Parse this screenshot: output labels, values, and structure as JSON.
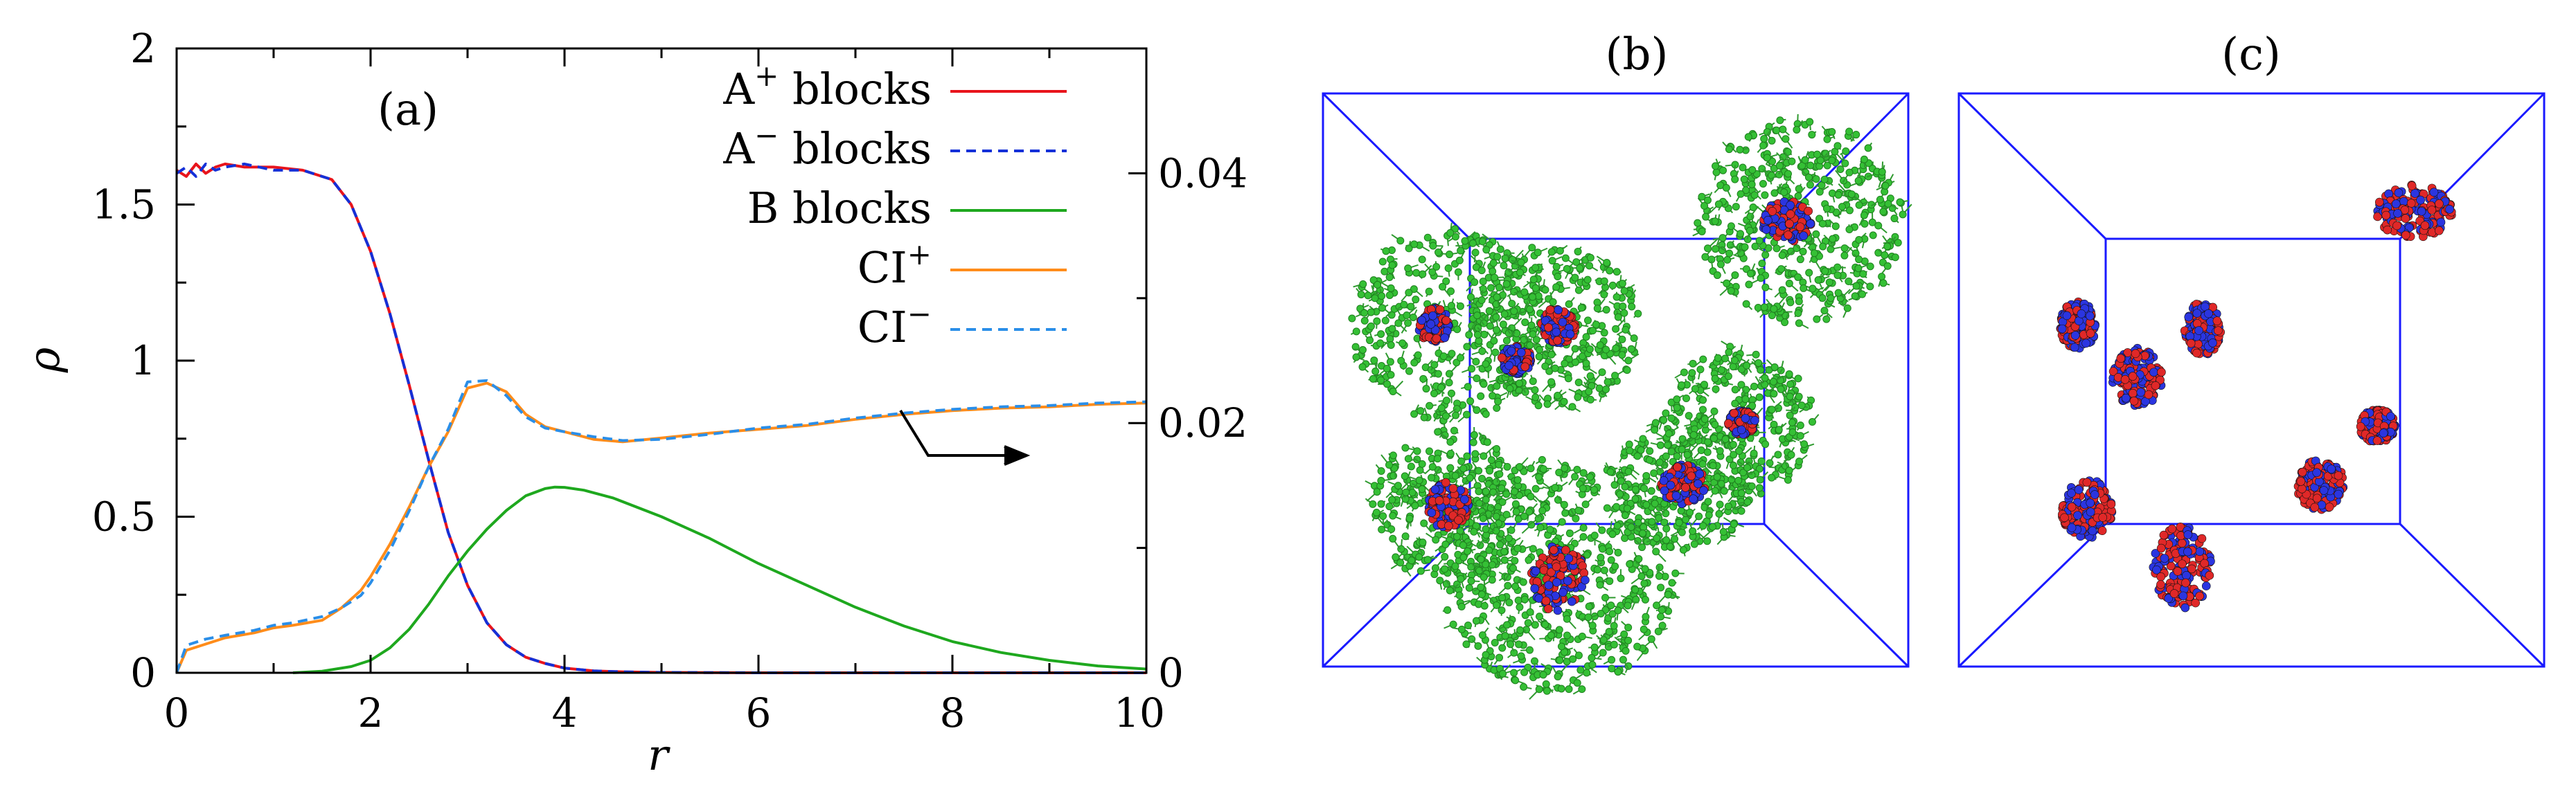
{
  "chart_data": [
    {
      "type": "line",
      "panel_label": "(a)",
      "xlabel": "r",
      "ylabel": "ρ",
      "xlim": [
        0,
        10
      ],
      "ylim": [
        0,
        2
      ],
      "y2lim": [
        0,
        0.05
      ],
      "x_ticks": [
        "0",
        "2",
        "4",
        "6",
        "8",
        "10"
      ],
      "y_ticks": [
        "0",
        "0.5",
        "1",
        "1.5",
        "2"
      ],
      "y2_ticks": [
        "0",
        "0.02",
        "0.04"
      ],
      "legend": [
        {
          "base": "A",
          "sup": "+",
          "rest": " blocks",
          "color": "#e8141c",
          "dash": false
        },
        {
          "base": "A",
          "sup": "−",
          "rest": " blocks",
          "color": "#1430d8",
          "dash": true
        },
        {
          "base": "B blocks",
          "sup": "",
          "rest": "",
          "color": "#1ea81e",
          "dash": false
        },
        {
          "base": "CI",
          "sup": "+",
          "rest": "",
          "color": "#ff8c1a",
          "dash": false
        },
        {
          "base": "CI",
          "sup": "−",
          "rest": "",
          "color": "#2a8ee8",
          "dash": true
        }
      ],
      "annotation": "arrow indicating CI curves use the right axis",
      "series": [
        {
          "name": "A+ blocks",
          "axis": "left",
          "color": "#e8141c",
          "dash": false,
          "x": [
            0,
            0.1,
            0.2,
            0.3,
            0.4,
            0.5,
            0.7,
            1,
            1.3,
            1.6,
            1.8,
            2,
            2.2,
            2.4,
            2.6,
            2.8,
            3,
            3.2,
            3.4,
            3.6,
            3.8,
            4,
            4.3,
            4.6,
            5,
            6,
            7,
            8,
            9,
            10
          ],
          "y": [
            1.61,
            1.59,
            1.63,
            1.6,
            1.62,
            1.63,
            1.62,
            1.62,
            1.61,
            1.58,
            1.5,
            1.35,
            1.15,
            0.92,
            0.68,
            0.45,
            0.28,
            0.16,
            0.09,
            0.05,
            0.03,
            0.015,
            0.006,
            0.003,
            0.001,
            0,
            0,
            0,
            0,
            0
          ]
        },
        {
          "name": "A- blocks",
          "axis": "left",
          "color": "#1430d8",
          "dash": true,
          "x": [
            0,
            0.1,
            0.2,
            0.3,
            0.4,
            0.5,
            0.7,
            1,
            1.3,
            1.6,
            1.8,
            2,
            2.2,
            2.4,
            2.6,
            2.8,
            3,
            3.2,
            3.4,
            3.6,
            3.8,
            4,
            4.3,
            4.6,
            5,
            6,
            7,
            8,
            9,
            10
          ],
          "y": [
            1.6,
            1.62,
            1.59,
            1.63,
            1.61,
            1.62,
            1.63,
            1.61,
            1.61,
            1.58,
            1.5,
            1.35,
            1.15,
            0.92,
            0.68,
            0.45,
            0.28,
            0.16,
            0.09,
            0.05,
            0.03,
            0.015,
            0.006,
            0.003,
            0.001,
            0,
            0,
            0,
            0,
            0
          ]
        },
        {
          "name": "B blocks",
          "axis": "left",
          "color": "#1ea81e",
          "dash": false,
          "x": [
            1.2,
            1.5,
            1.8,
            2,
            2.2,
            2.4,
            2.6,
            2.8,
            3,
            3.2,
            3.4,
            3.6,
            3.8,
            3.9,
            4,
            4.2,
            4.5,
            5,
            5.5,
            6,
            6.5,
            7,
            7.5,
            8,
            8.5,
            9,
            9.5,
            10
          ],
          "y": [
            0,
            0.005,
            0.02,
            0.04,
            0.08,
            0.14,
            0.22,
            0.31,
            0.39,
            0.46,
            0.52,
            0.567,
            0.59,
            0.595,
            0.594,
            0.585,
            0.56,
            0.5,
            0.43,
            0.35,
            0.28,
            0.21,
            0.15,
            0.1,
            0.065,
            0.04,
            0.022,
            0.012
          ]
        },
        {
          "name": "CI+",
          "axis": "right",
          "color": "#ff8c1a",
          "dash": false,
          "x": [
            0,
            0.1,
            0.3,
            0.5,
            0.8,
            1,
            1.2,
            1.5,
            1.7,
            1.9,
            2,
            2.2,
            2.4,
            2.6,
            2.8,
            3,
            3.2,
            3.4,
            3.6,
            3.8,
            4,
            4.3,
            4.6,
            5,
            5.5,
            6,
            6.5,
            7,
            7.5,
            8,
            8.5,
            9,
            9.5,
            10
          ],
          "y": [
            0,
            0.0018,
            0.0023,
            0.0028,
            0.0032,
            0.0036,
            0.0038,
            0.0042,
            0.0052,
            0.0066,
            0.0077,
            0.0103,
            0.0133,
            0.0165,
            0.0193,
            0.0228,
            0.0232,
            0.0225,
            0.0207,
            0.0197,
            0.0193,
            0.0187,
            0.0185,
            0.0188,
            0.0192,
            0.0195,
            0.0198,
            0.0203,
            0.0207,
            0.021,
            0.0212,
            0.0213,
            0.0215,
            0.0216
          ]
        },
        {
          "name": "CI-",
          "axis": "right",
          "color": "#2a8ee8",
          "dash": true,
          "x": [
            0,
            0.1,
            0.3,
            0.5,
            0.8,
            1,
            1.2,
            1.5,
            1.7,
            1.9,
            2,
            2.2,
            2.4,
            2.6,
            2.8,
            3,
            3.2,
            3.4,
            3.6,
            3.8,
            4,
            4.3,
            4.6,
            5,
            5.5,
            6,
            6.5,
            7,
            7.5,
            8,
            8.5,
            9,
            9.5,
            10
          ],
          "y": [
            0,
            0.0022,
            0.0027,
            0.003,
            0.0034,
            0.0038,
            0.004,
            0.0045,
            0.0052,
            0.0062,
            0.0072,
            0.0098,
            0.013,
            0.0165,
            0.0195,
            0.0233,
            0.0234,
            0.0222,
            0.0205,
            0.0196,
            0.0193,
            0.0189,
            0.0186,
            0.0187,
            0.0191,
            0.0196,
            0.0199,
            0.0204,
            0.0208,
            0.0211,
            0.0213,
            0.0214,
            0.0216,
            0.0217
          ]
        }
      ]
    },
    {
      "type": "other",
      "panel_label": "(b)",
      "content": "3D simulation box with micelles: red/blue cores surrounded by green coronas"
    },
    {
      "type": "other",
      "panel_label": "(c)",
      "content": "3D simulation box with red/blue micelle cores only"
    }
  ],
  "colors": {
    "axis": "#000000",
    "box": "#1a1aff",
    "corona": "#35c035",
    "core_red": "#e02828",
    "core_blue": "#2b35e0"
  }
}
